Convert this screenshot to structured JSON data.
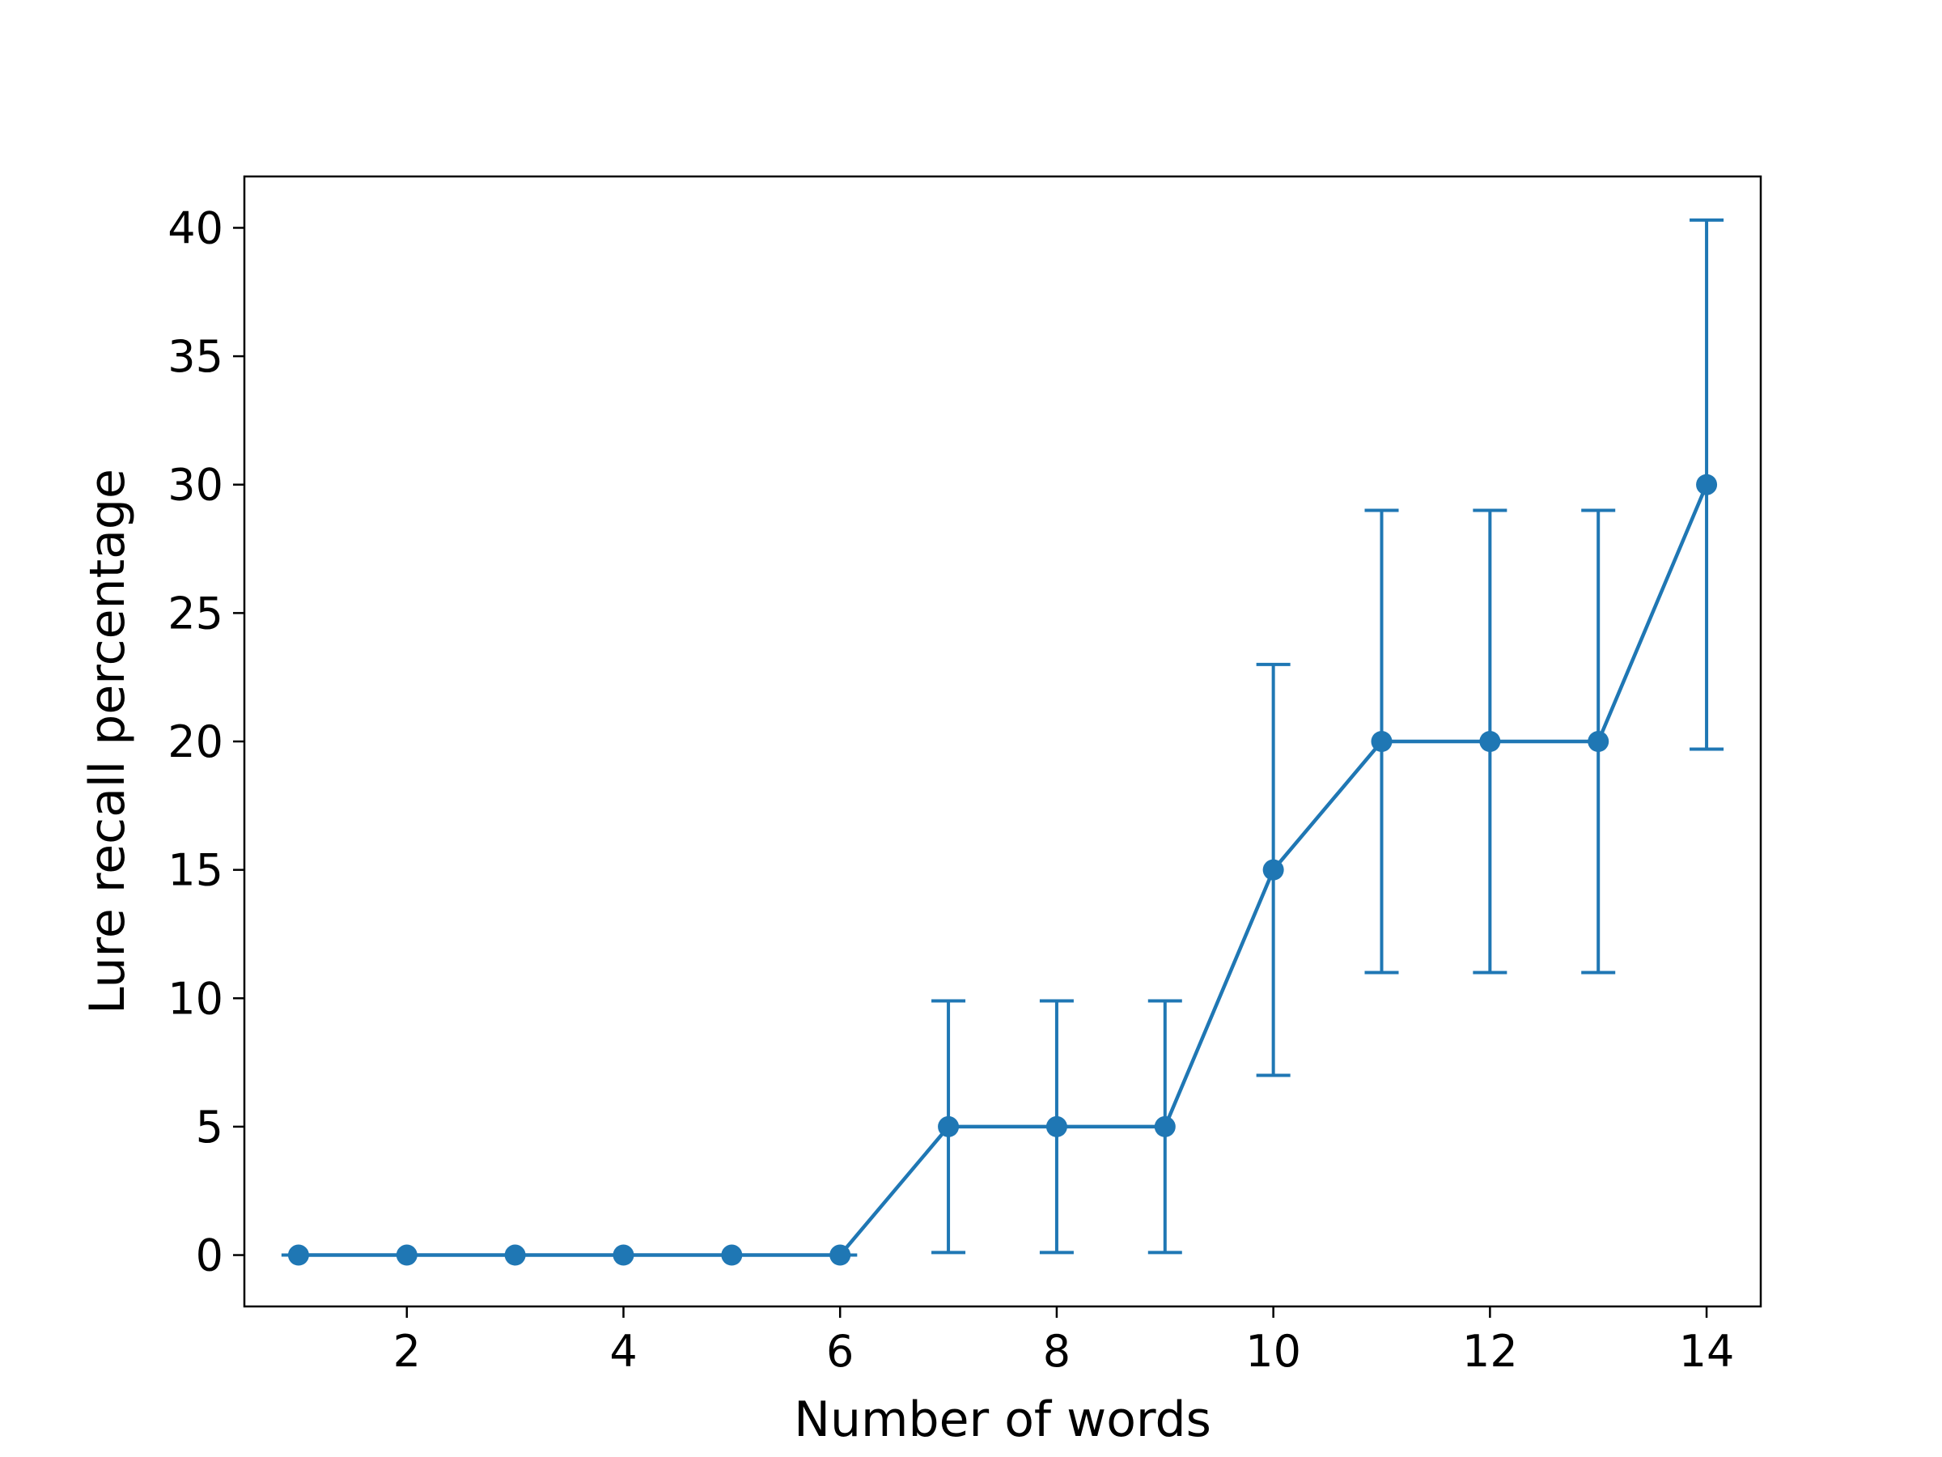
{
  "chart_data": {
    "type": "line",
    "title": "",
    "xlabel": "Number of words",
    "ylabel": "Lure recall percentage",
    "xlim": [
      0.5,
      14.5
    ],
    "ylim": [
      -2,
      42
    ],
    "xticks": [
      2,
      4,
      6,
      8,
      10,
      12,
      14
    ],
    "yticks": [
      0,
      5,
      10,
      15,
      20,
      25,
      30,
      35,
      40
    ],
    "grid": false,
    "legend": "none",
    "color": "#1f77b4",
    "series": [
      {
        "x": [
          1,
          2,
          3,
          4,
          5,
          6,
          7,
          8,
          9,
          10,
          11,
          12,
          13,
          14
        ],
        "y": [
          0,
          0,
          0,
          0,
          0,
          0,
          5,
          5,
          5,
          15,
          20,
          20,
          20,
          30
        ],
        "yerr": [
          0,
          0,
          0,
          0,
          0,
          0,
          4.9,
          4.9,
          4.9,
          8,
          9,
          9,
          9,
          10.3
        ]
      }
    ]
  }
}
